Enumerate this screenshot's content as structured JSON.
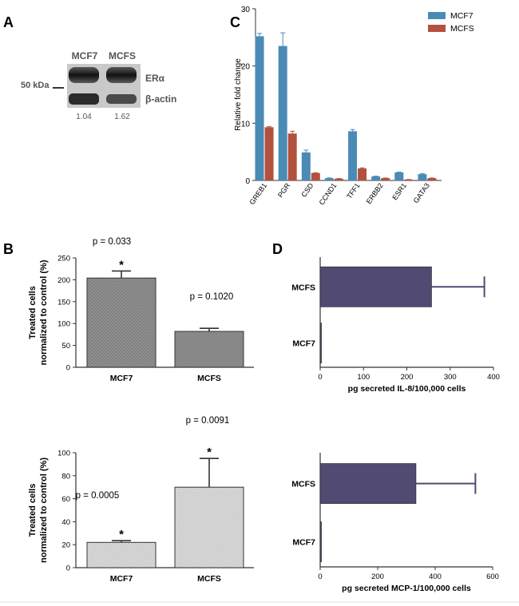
{
  "panel_labels": {
    "a": "A",
    "b": "B",
    "c": "C",
    "d": "D"
  },
  "blot": {
    "lanes": [
      "MCF7",
      "MCFS"
    ],
    "marker": "50 kDa",
    "bands": [
      "ERα",
      "β-actin"
    ],
    "ratios": [
      "1.04",
      "1.62"
    ]
  },
  "colors": {
    "mcf7": "#4a8bb5",
    "mcfs": "#b3503e",
    "bar_dark": "#8a8a8a",
    "bar_light": "#cfcfcf",
    "bar_d": "#514a72"
  },
  "chart_data": [
    {
      "id": "C",
      "type": "bar",
      "categories": [
        "GREB1",
        "PGR",
        "CSD",
        "CCND1",
        "TFF1",
        "ERBB2",
        "ESR1",
        "GATA3"
      ],
      "series": [
        {
          "name": "MCF7",
          "values": [
            25.2,
            23.5,
            4.9,
            0.4,
            8.6,
            0.7,
            1.4,
            1.1
          ],
          "errors": [
            0.5,
            2.3,
            0.4,
            0.05,
            0.3,
            0.05,
            0.05,
            0.1
          ]
        },
        {
          "name": "MCFS",
          "values": [
            9.3,
            8.2,
            1.3,
            0.3,
            2.1,
            0.4,
            0.15,
            0.4
          ],
          "errors": [
            0.1,
            0.4,
            0.05,
            0.03,
            0.1,
            0.03,
            0.02,
            0.03
          ]
        }
      ],
      "ylabel": "Relative fold change",
      "ylim": [
        0,
        30
      ],
      "yticks": [
        0,
        10,
        20,
        30
      ]
    },
    {
      "id": "B1",
      "type": "bar",
      "categories": [
        "MCF7",
        "MCFS"
      ],
      "values": [
        204,
        82
      ],
      "errors": [
        16,
        7
      ],
      "ylabel": "Treated cells normalized to control (%)",
      "ylabel_lines": [
        "Treated cells",
        "normalized to control (%)"
      ],
      "ylim": [
        0,
        250
      ],
      "yticks": [
        0,
        50,
        100,
        150,
        200,
        250
      ],
      "pvalues": [
        "p = 0.033",
        "p = 0.1020"
      ],
      "significance": [
        "*",
        ""
      ]
    },
    {
      "id": "B2",
      "type": "bar",
      "categories": [
        "MCF7",
        "MCFS"
      ],
      "values": [
        22,
        70
      ],
      "errors": [
        1.5,
        25
      ],
      "ylabel": "Treated cells normalized to control (%)",
      "ylabel_lines": [
        "Treated cells",
        "normalized to control (%)"
      ],
      "ylim": [
        0,
        100
      ],
      "yticks": [
        0,
        20,
        40,
        60,
        80,
        100
      ],
      "pvalues": [
        "p = 0.0005",
        "p = 0.0091"
      ],
      "significance": [
        "*",
        "*"
      ]
    },
    {
      "id": "D1",
      "type": "bar",
      "orientation": "horizontal",
      "categories": [
        "MCFS",
        "MCF7"
      ],
      "values": [
        257,
        1
      ],
      "errors": [
        122,
        0
      ],
      "xlabel": "pg secreted IL-8/100,000 cells",
      "xlim": [
        0,
        400
      ],
      "xticks": [
        0,
        100,
        200,
        300,
        400
      ]
    },
    {
      "id": "D2",
      "type": "bar",
      "orientation": "horizontal",
      "categories": [
        "MCFS",
        "MCF7"
      ],
      "values": [
        333,
        3
      ],
      "errors": [
        207,
        0
      ],
      "xlabel": "pg secreted MCP-1/100,000 cells",
      "xlim": [
        0,
        600
      ],
      "xticks": [
        0,
        200,
        400,
        600
      ]
    }
  ]
}
